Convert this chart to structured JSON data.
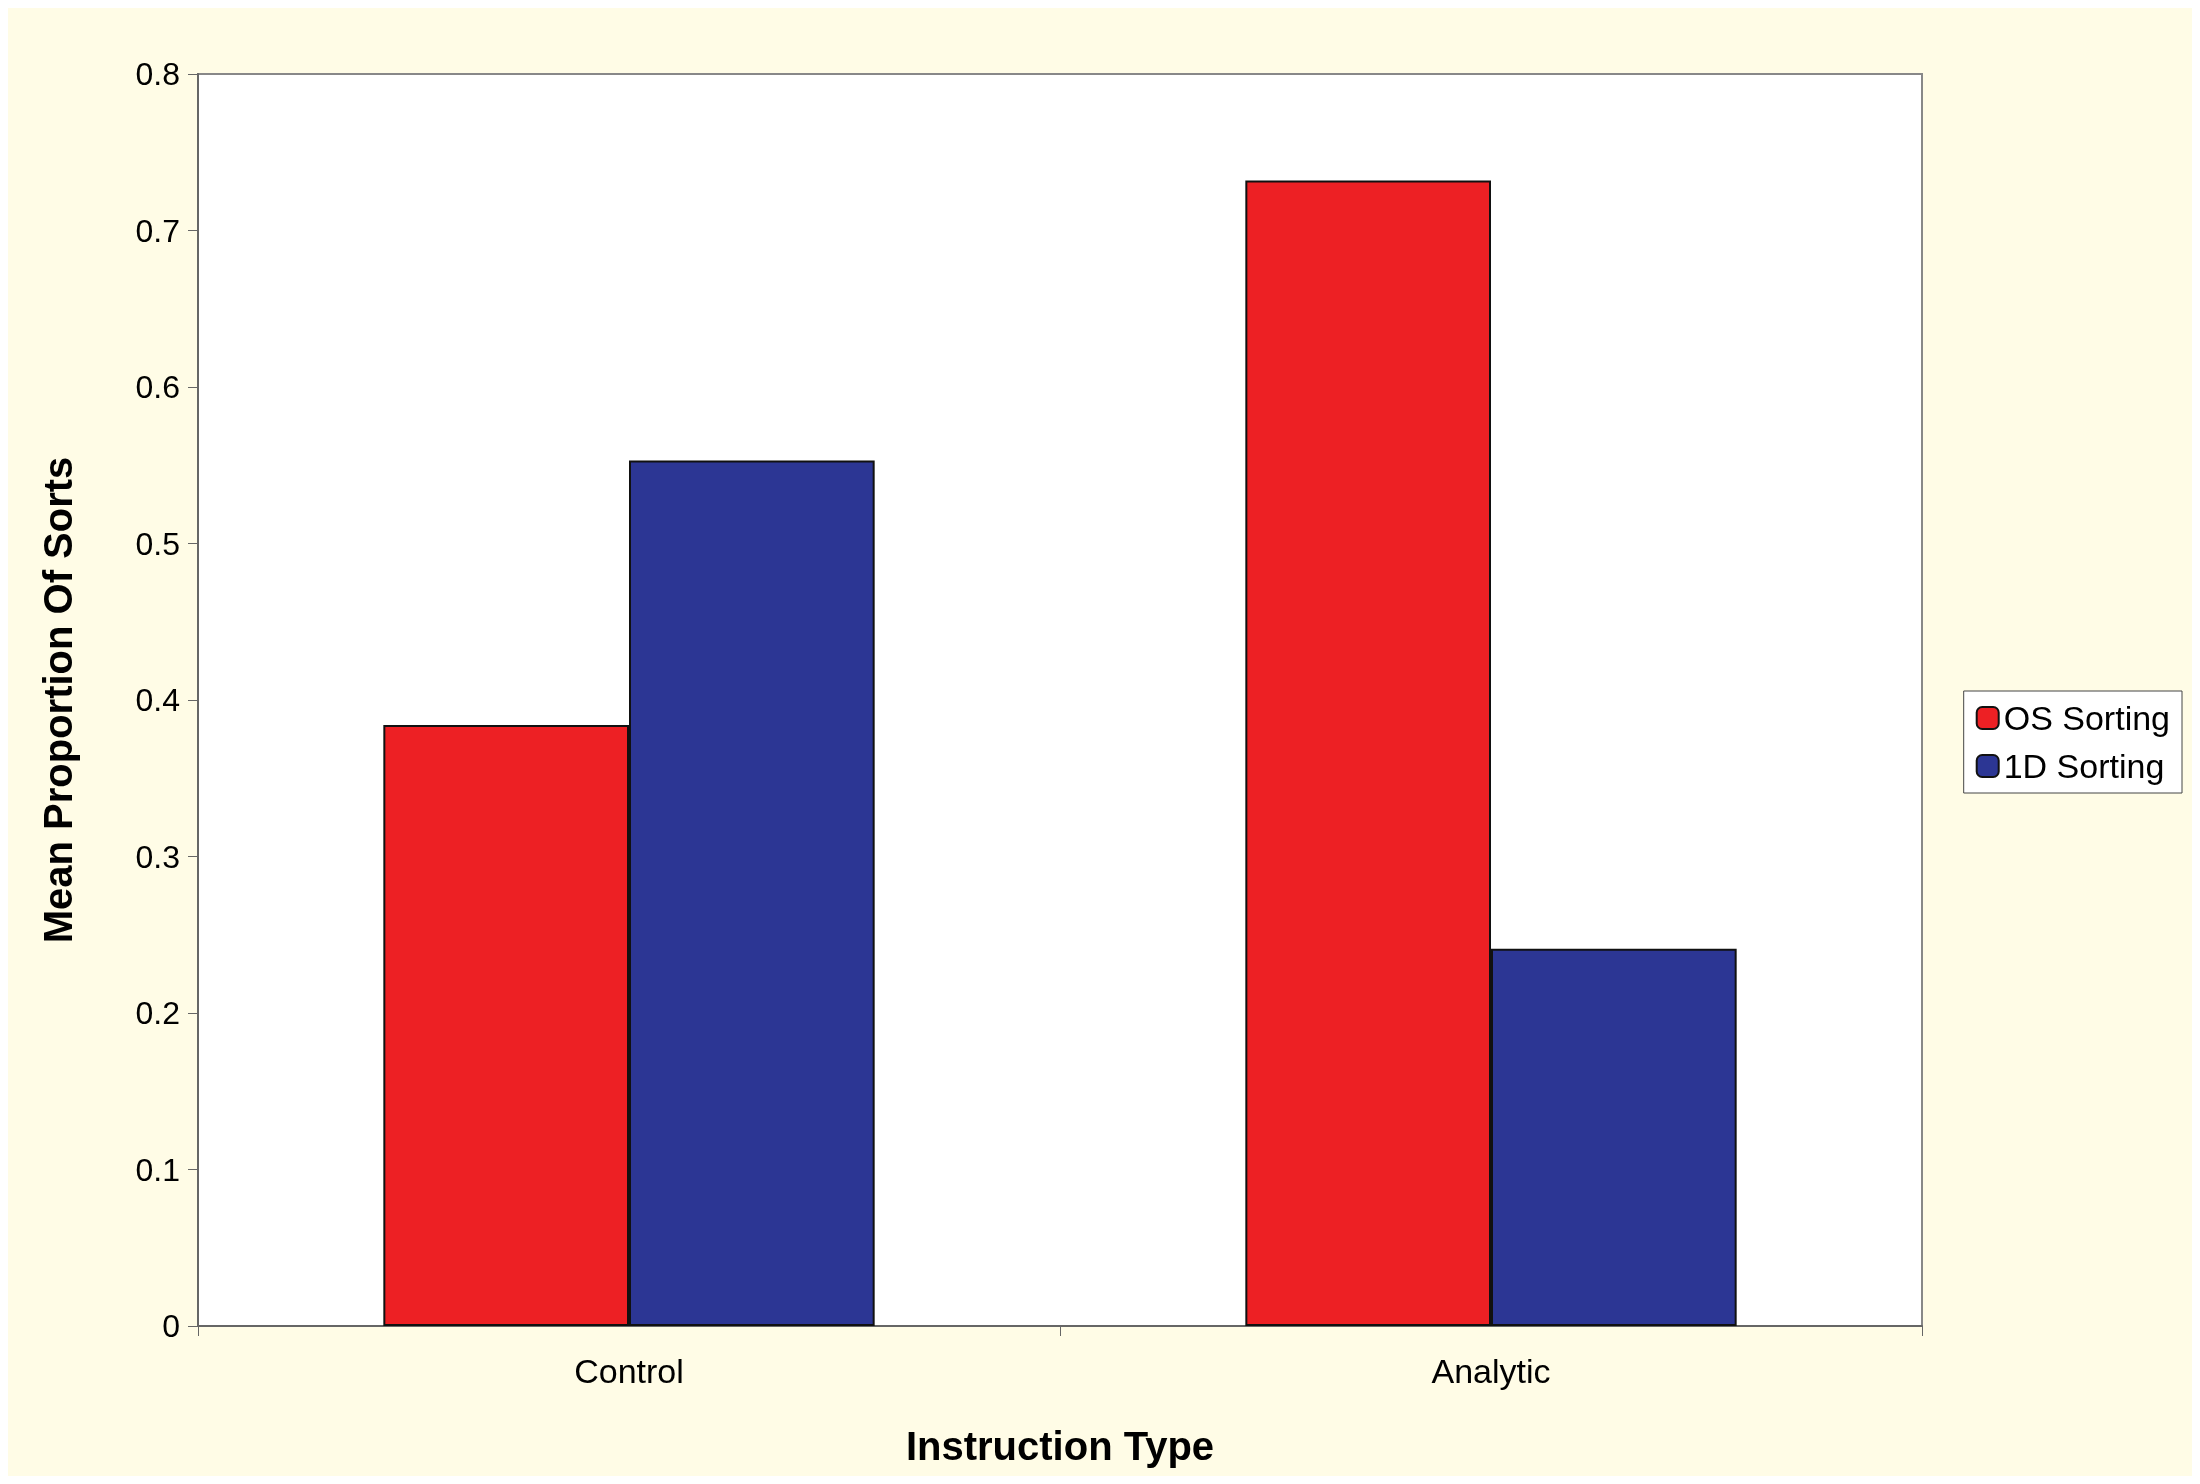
{
  "chart_data": {
    "type": "bar",
    "xlabel": "Instruction Type",
    "ylabel": "Mean Proportion Of Sorts",
    "categories": [
      "Control",
      "Analytic"
    ],
    "series": [
      {
        "name": "OS Sorting",
        "color": "#ed2024",
        "values": [
          0.384,
          0.732
        ]
      },
      {
        "name": "1D Sorting",
        "color": "#2c3694",
        "values": [
          0.553,
          0.241
        ]
      }
    ],
    "ylim": [
      0,
      0.8
    ],
    "yticks": [
      0,
      0.1,
      0.2,
      0.3,
      0.4,
      0.5,
      0.6,
      0.7,
      0.8
    ],
    "grid": false,
    "legend": "right"
  }
}
